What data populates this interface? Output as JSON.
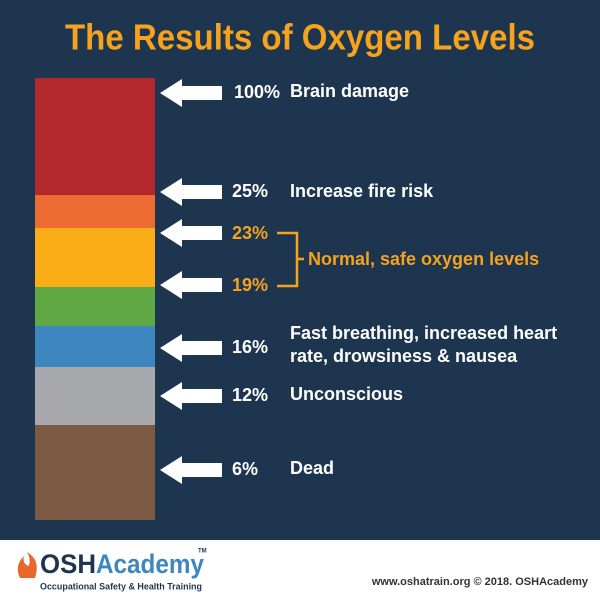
{
  "header": {
    "title": "The Results of Oxygen Levels"
  },
  "levels": [
    {
      "percent": "100%",
      "label": [
        "Brain damage"
      ]
    },
    {
      "percent": "25%",
      "label": [
        "Increase fire risk"
      ]
    },
    {
      "percent": "23%"
    },
    {
      "percent": "19%"
    },
    {
      "percent": "16%",
      "label": [
        "Fast breathing, increased heart",
        "rate, drowsiness & nausea"
      ]
    },
    {
      "percent": "12%",
      "label": [
        "Unconscious"
      ]
    },
    {
      "percent": "6%",
      "label": [
        "Dead"
      ]
    }
  ],
  "normal_range": {
    "label": "Normal, safe oxygen levels"
  },
  "footer": {
    "logo_left": "OSH",
    "logo_right": "Academy",
    "trademark": "TM",
    "tagline": "Occupational Safety & Health Training",
    "credit": "www.oshatrain.org © 2018. OSHAcademy"
  }
}
